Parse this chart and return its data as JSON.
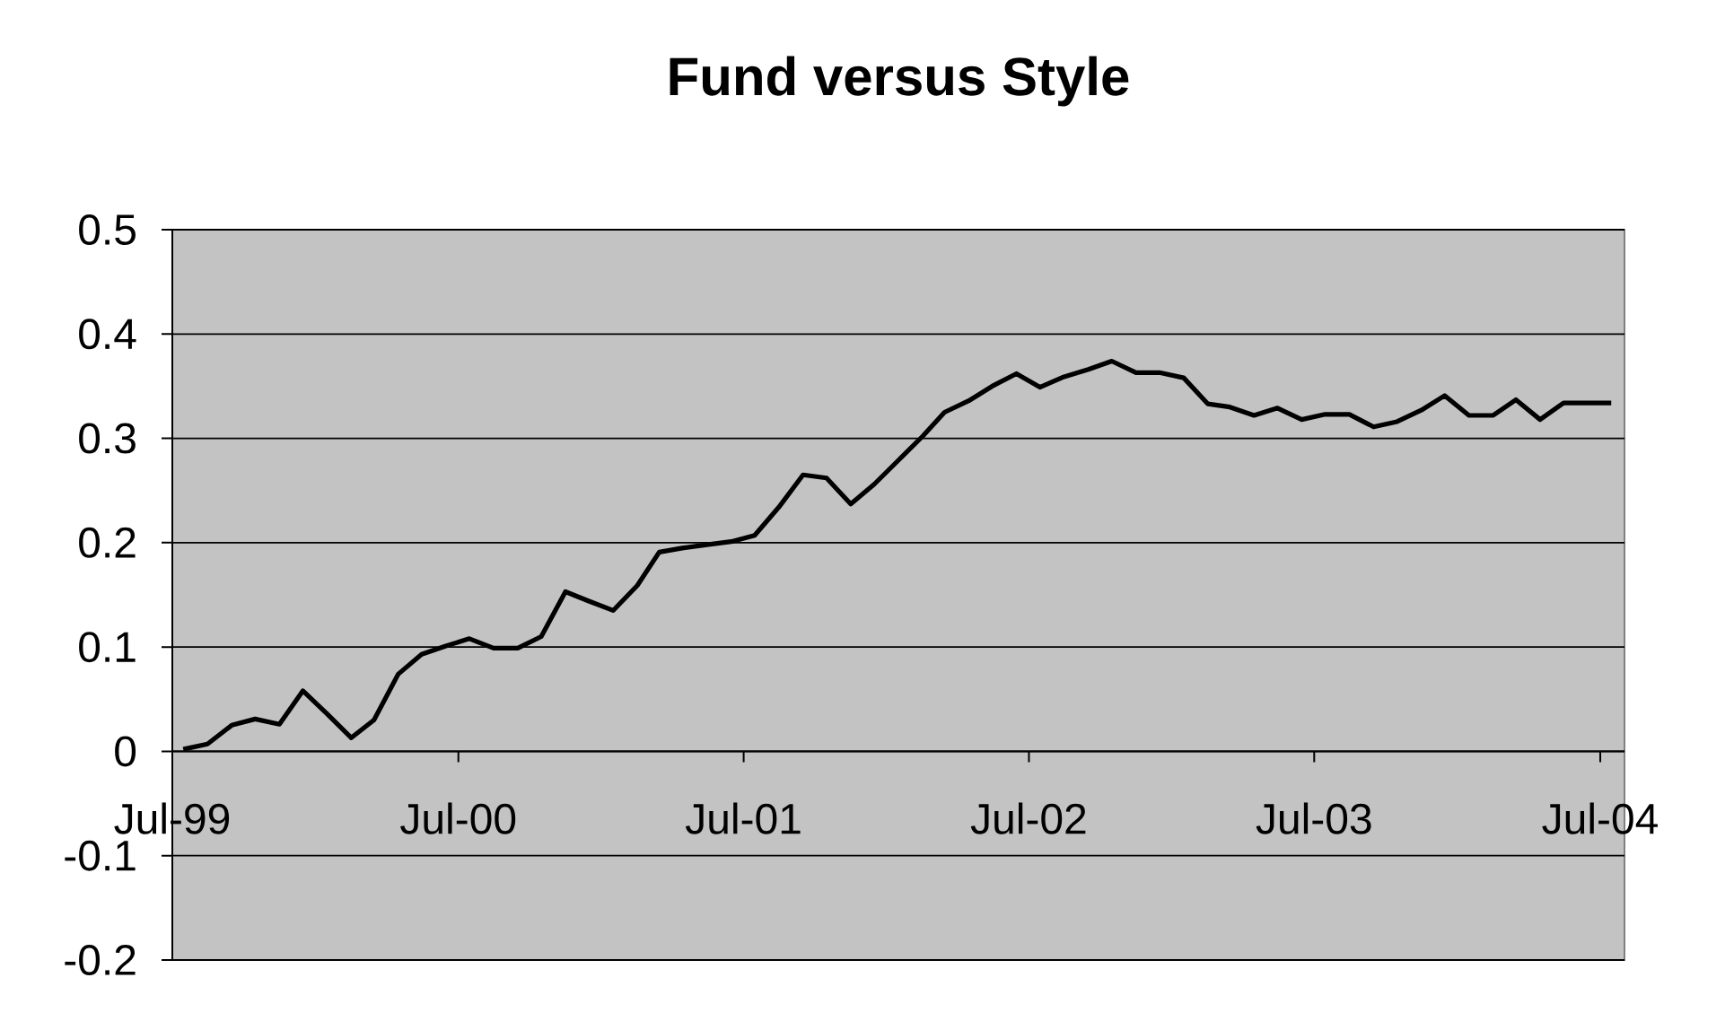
{
  "chart_data": {
    "type": "line",
    "title": "Fund versus Style",
    "x": [
      "1999-07-15",
      "1999-08-15",
      "1999-09-15",
      "1999-10-15",
      "1999-11-15",
      "1999-12-15",
      "2000-01-15",
      "2000-02-15",
      "2000-03-15",
      "2000-04-15",
      "2000-05-15",
      "2000-06-15",
      "2000-07-15",
      "2000-08-15",
      "2000-09-15",
      "2000-10-15",
      "2000-11-15",
      "2000-12-15",
      "2001-01-15",
      "2001-02-15",
      "2001-03-15",
      "2001-04-15",
      "2001-05-15",
      "2001-06-15",
      "2001-07-15",
      "2001-08-15",
      "2001-09-15",
      "2001-10-15",
      "2001-11-15",
      "2001-12-15",
      "2002-01-15",
      "2002-02-15",
      "2002-03-15",
      "2002-04-15",
      "2002-05-15",
      "2002-06-15",
      "2002-07-15",
      "2002-08-15",
      "2002-09-15",
      "2002-10-15",
      "2002-11-15",
      "2002-12-15",
      "2003-01-15",
      "2003-02-15",
      "2003-03-15",
      "2003-04-15",
      "2003-05-15",
      "2003-06-15",
      "2003-07-15",
      "2003-08-15",
      "2003-09-15",
      "2003-10-15",
      "2003-11-15",
      "2003-12-15",
      "2004-01-15",
      "2004-02-15",
      "2004-03-15",
      "2004-04-15",
      "2004-05-15",
      "2004-06-15",
      "2004-07-15"
    ],
    "series": [
      {
        "color": "#000000",
        "values": [
          0.002,
          0.007,
          0.025,
          0.031,
          0.026,
          0.058,
          0.036,
          0.013,
          0.03,
          0.074,
          0.093,
          0.101,
          0.108,
          0.099,
          0.099,
          0.11,
          0.153,
          0.144,
          0.135,
          0.159,
          0.191,
          0.195,
          0.198,
          0.201,
          0.207,
          0.234,
          0.265,
          0.262,
          0.237,
          0.256,
          0.279,
          0.302,
          0.325,
          0.336,
          0.35,
          0.362,
          0.349,
          0.359,
          0.366,
          0.374,
          0.363,
          0.363,
          0.358,
          0.333,
          0.33,
          0.322,
          0.329,
          0.318,
          0.323,
          0.323,
          0.311,
          0.316,
          0.327,
          0.341,
          0.322,
          0.322,
          0.337,
          0.318,
          0.334,
          0.334,
          0.334
        ]
      }
    ],
    "xlim": [
      "1999-07",
      "2004-08"
    ],
    "xticks": [
      {
        "value": "1999-07",
        "label": "Jul-99"
      },
      {
        "value": "2000-07",
        "label": "Jul-00"
      },
      {
        "value": "2001-07",
        "label": "Jul-01"
      },
      {
        "value": "2002-07",
        "label": "Jul-02"
      },
      {
        "value": "2003-07",
        "label": "Jul-03"
      },
      {
        "value": "2004-07",
        "label": "Jul-04"
      }
    ],
    "ylim": [
      -0.2,
      0.5
    ],
    "yticks": [
      -0.2,
      -0.1,
      0,
      0.1,
      0.2,
      0.3,
      0.4,
      0.5
    ],
    "grid": "y"
  }
}
